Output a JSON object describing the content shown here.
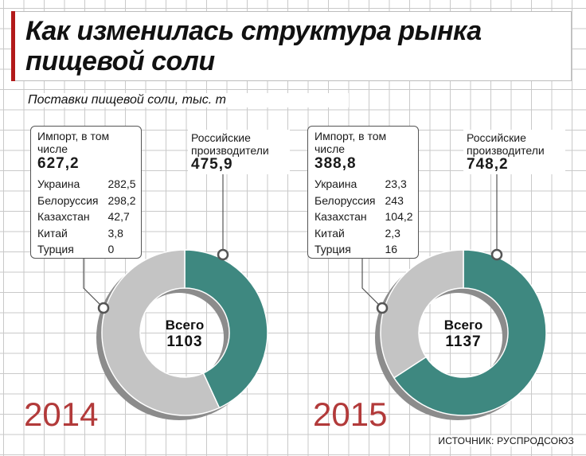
{
  "title": "Как изменилась структура рынка пищевой соли",
  "subtitle": "Поставки пищевой соли, тыс. т",
  "source": "ИСТОЧНИК: РУСПРОДСОЮЗ",
  "colors": {
    "import": "#c4c4c4",
    "russian": "#3e8880",
    "year": "#b23a3a",
    "shadow": "#8c8c8c"
  },
  "chart_data": [
    {
      "type": "pie",
      "year": "2014",
      "total_label": "Всего",
      "total": "1103",
      "import": {
        "label": "Импорт, в том числе",
        "value": "627,2",
        "number": 627.2,
        "countries": [
          {
            "name": "Украина",
            "value": "282,5"
          },
          {
            "name": "Белоруссия",
            "value": "298,2"
          },
          {
            "name": "Казахстан",
            "value": "42,7"
          },
          {
            "name": "Китай",
            "value": "3,8"
          },
          {
            "name": "Турция",
            "value": "0"
          }
        ]
      },
      "russian": {
        "label": "Российские производители",
        "value": "475,9",
        "number": 475.9
      }
    },
    {
      "type": "pie",
      "year": "2015",
      "total_label": "Всего",
      "total": "1137",
      "import": {
        "label": "Импорт, в том числе",
        "value": "388,8",
        "number": 388.8,
        "countries": [
          {
            "name": "Украина",
            "value": "23,3"
          },
          {
            "name": "Белоруссия",
            "value": "243"
          },
          {
            "name": "Казахстан",
            "value": "104,2"
          },
          {
            "name": "Китай",
            "value": "2,3"
          },
          {
            "name": "Турция",
            "value": "16"
          }
        ]
      },
      "russian": {
        "label": "Российские производители",
        "value": "748,2",
        "number": 748.2
      }
    }
  ]
}
